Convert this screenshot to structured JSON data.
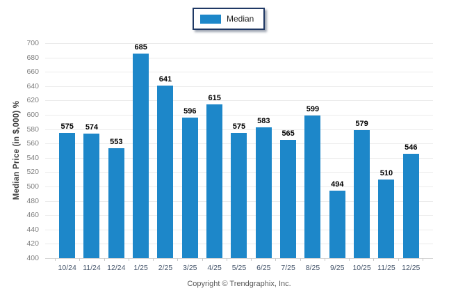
{
  "legend": {
    "label": "Median",
    "swatch_color": "#1d87c9"
  },
  "footer": {
    "copyright": "Copyright © Trendgraphix, Inc."
  },
  "chart_data": {
    "type": "bar",
    "title": "",
    "xlabel": "",
    "ylabel": "Median Price (in $,000) %",
    "categories": [
      "10/24",
      "11/24",
      "12/24",
      "1/25",
      "2/25",
      "3/25",
      "4/25",
      "5/25",
      "6/25",
      "7/25",
      "8/25",
      "9/25",
      "10/25",
      "11/25",
      "12/25"
    ],
    "values": [
      575,
      574,
      553,
      685,
      641,
      596,
      615,
      575,
      583,
      565,
      599,
      494,
      579,
      510,
      546
    ],
    "ylim": [
      400,
      700
    ],
    "yticks": [
      400,
      420,
      440,
      460,
      480,
      500,
      520,
      540,
      560,
      580,
      600,
      620,
      640,
      660,
      680,
      700
    ],
    "grid": true,
    "value_labels": true,
    "legend_position": "top-center",
    "bar_color": "#1d87c9"
  },
  "colors": {
    "bar": "#1d87c9",
    "gridline": "#ebebeb",
    "axis_line": "#d6d6d6",
    "ytick_label": "#7f7f7f",
    "xtick_label": "#44546a",
    "value_label": "#000000",
    "y_title": "#3f3f3f",
    "legend_border": "#1f3864",
    "footer_text": "#595959"
  }
}
